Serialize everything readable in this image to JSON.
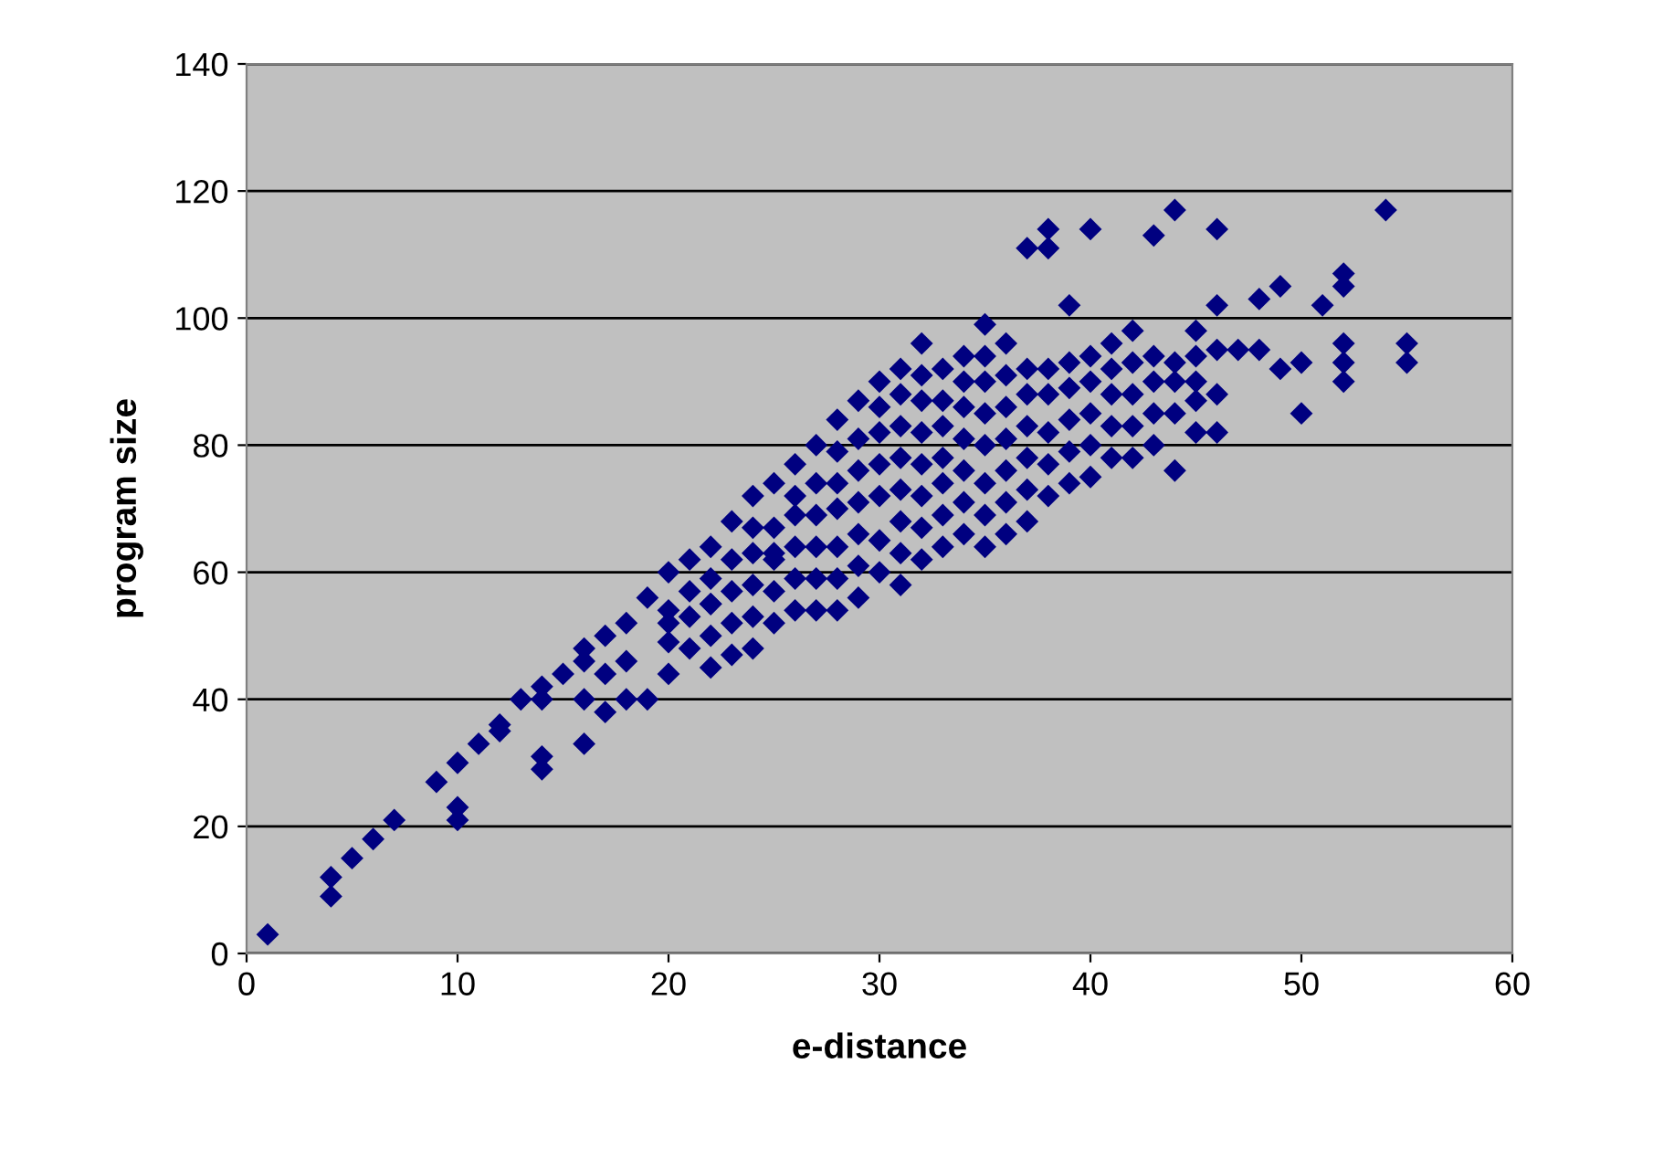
{
  "chart_data": {
    "type": "scatter",
    "xlabel": "e-distance",
    "ylabel": "program size",
    "x": [
      1,
      4,
      4,
      5,
      6,
      7,
      9,
      10,
      10,
      10,
      11,
      12,
      12,
      13,
      14,
      14,
      14,
      14,
      15,
      16,
      16,
      16,
      16,
      17,
      17,
      17,
      18,
      18,
      18,
      19,
      19,
      20,
      20,
      21,
      21,
      22,
      22,
      23,
      23,
      24,
      24,
      25,
      25,
      26,
      26,
      27,
      27,
      28,
      28,
      29,
      29,
      30,
      30,
      31,
      31,
      32,
      32,
      33,
      33,
      34,
      34,
      35,
      35,
      36,
      36,
      37,
      37,
      38,
      38,
      38,
      39,
      39,
      40,
      40,
      41,
      41,
      42,
      42,
      43,
      43,
      44,
      44,
      45,
      45,
      46,
      46,
      46,
      47,
      48,
      48,
      49,
      49,
      50,
      50,
      51,
      52,
      52,
      52,
      52,
      52,
      54,
      55,
      55,
      25,
      30,
      35,
      40,
      28,
      33,
      38,
      22,
      20,
      43,
      45,
      46,
      46,
      20,
      20,
      21,
      21,
      22,
      22,
      22,
      23,
      23,
      23,
      24,
      24,
      24,
      24,
      25,
      25,
      25,
      26,
      26,
      26,
      26,
      27,
      27,
      27,
      27,
      28,
      28,
      28,
      28,
      29,
      29,
      29,
      29,
      29,
      30,
      30,
      30,
      30,
      31,
      31,
      31,
      31,
      31,
      31,
      32,
      32,
      32,
      32,
      32,
      32,
      33,
      33,
      33,
      33,
      34,
      34,
      34,
      34,
      34,
      35,
      35,
      35,
      35,
      35,
      36,
      36,
      36,
      36,
      36,
      37,
      37,
      37,
      37,
      37,
      38,
      38,
      38,
      39,
      39,
      39,
      39,
      40,
      40,
      40,
      41,
      41,
      41,
      42,
      42,
      42,
      43,
      43,
      44,
      44,
      44,
      45,
      45
    ],
    "values": [
      3,
      9,
      12,
      15,
      18,
      21,
      27,
      21,
      23,
      30,
      33,
      35,
      36,
      40,
      29,
      31,
      40,
      42,
      44,
      33,
      40,
      46,
      48,
      38,
      44,
      50,
      40,
      46,
      52,
      40,
      56,
      44,
      60,
      48,
      62,
      45,
      64,
      47,
      68,
      48,
      72,
      52,
      74,
      54,
      77,
      54,
      80,
      54,
      84,
      56,
      87,
      60,
      90,
      58,
      92,
      62,
      96,
      64,
      92,
      66,
      94,
      64,
      99,
      66,
      96,
      68,
      111,
      72,
      111,
      114,
      74,
      102,
      75,
      114,
      78,
      96,
      78,
      98,
      80,
      113,
      76,
      117,
      82,
      98,
      82,
      114,
      102,
      95,
      95,
      103,
      92,
      105,
      85,
      93,
      102,
      90,
      93,
      96,
      105,
      107,
      117,
      93,
      96,
      63,
      72,
      80,
      85,
      70,
      78,
      88,
      55,
      52,
      90,
      90,
      88,
      95,
      49,
      54,
      53,
      57,
      50,
      55,
      59,
      52,
      57,
      62,
      53,
      58,
      63,
      67,
      57,
      62,
      67,
      59,
      64,
      69,
      72,
      59,
      64,
      69,
      74,
      59,
      64,
      74,
      79,
      61,
      66,
      71,
      76,
      81,
      65,
      77,
      82,
      86,
      63,
      68,
      73,
      78,
      83,
      88,
      67,
      72,
      77,
      82,
      87,
      91,
      69,
      74,
      83,
      87,
      71,
      76,
      81,
      86,
      90,
      69,
      74,
      85,
      90,
      94,
      71,
      76,
      81,
      86,
      91,
      73,
      78,
      83,
      88,
      92,
      77,
      82,
      92,
      79,
      84,
      89,
      93,
      80,
      90,
      94,
      83,
      88,
      92,
      83,
      88,
      93,
      85,
      94,
      85,
      90,
      93,
      87,
      94
    ],
    "color": "#000080",
    "marker": "diamond",
    "xlim": [
      0,
      60
    ],
    "xticks": [
      0,
      10,
      20,
      30,
      40,
      50,
      60
    ],
    "ylim": [
      0,
      140
    ],
    "yticks": [
      0,
      20,
      40,
      60,
      80,
      100,
      120,
      140
    ],
    "grid": "y"
  }
}
